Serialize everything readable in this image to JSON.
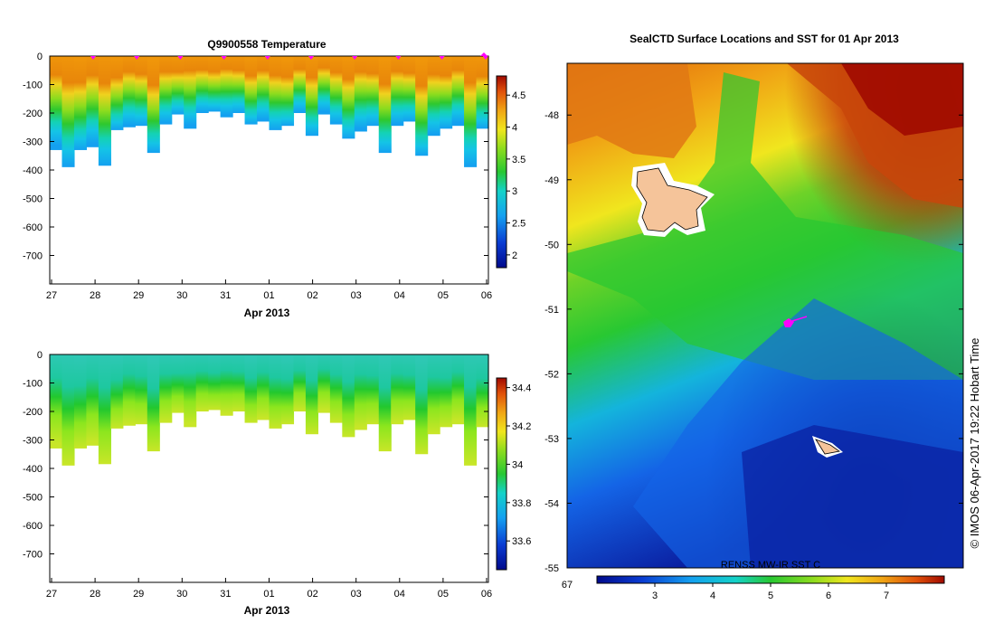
{
  "chart_data": [
    {
      "type": "heatmap",
      "title": "Q9900558  Temperature",
      "xlabel": "Apr 2013",
      "x_ticks": [
        "27",
        "28",
        "29",
        "30",
        "31",
        "01",
        "02",
        "03",
        "04",
        "05",
        "06"
      ],
      "y_ticks": [
        "0",
        "-100",
        "-200",
        "-300",
        "-400",
        "-500",
        "-600",
        "-700"
      ],
      "ylim": [
        -800,
        0
      ],
      "colorbar_ticks": [
        "4.5",
        "4",
        "3.5",
        "3",
        "2.5",
        "2"
      ],
      "colorbar_range": [
        1.8,
        4.8
      ],
      "profile_depths": [
        330,
        390,
        330,
        320,
        385,
        260,
        250,
        245,
        340,
        240,
        205,
        255,
        200,
        195,
        215,
        200,
        240,
        230,
        260,
        245,
        200,
        280,
        205,
        240,
        290,
        265,
        245,
        340,
        245,
        230,
        350,
        280,
        255,
        245,
        390,
        255
      ],
      "colors": {
        "warm": "#e8860a",
        "mid": "#2ec82e",
        "cool": "#14c4e6",
        "marker": "#ff00ff"
      }
    },
    {
      "type": "heatmap",
      "title": "",
      "xlabel": "Apr 2013",
      "x_ticks": [
        "27",
        "28",
        "29",
        "30",
        "31",
        "01",
        "02",
        "03",
        "04",
        "05",
        "06"
      ],
      "y_ticks": [
        "0",
        "-100",
        "-200",
        "-300",
        "-400",
        "-500",
        "-600",
        "-700"
      ],
      "ylim": [
        -800,
        0
      ],
      "colorbar_ticks": [
        "34.4",
        "34.2",
        "34",
        "33.8",
        "33.6"
      ],
      "colorbar_range": [
        33.45,
        34.45
      ],
      "colors": {
        "fresh": "#2ec8b4",
        "mid": "#22c82e",
        "salty": "#c8e628"
      }
    },
    {
      "type": "heatmap",
      "title": "SealCTD Surface Locations and SST for 01 Apr 2013",
      "y_ticks": [
        "-48",
        "-49",
        "-50",
        "-51",
        "-52",
        "-53",
        "-54",
        "-55"
      ],
      "ylim": [
        -55,
        -47.2
      ],
      "x_tick_left": "67",
      "colorbar_label": "RENSS MW-IR SST C",
      "colorbar_ticks": [
        "3",
        "4",
        "5",
        "6",
        "7"
      ],
      "colorbar_range": [
        2,
        8
      ],
      "colors": {
        "land": "#f5c49a",
        "seal_track": "#ff00ff"
      }
    }
  ],
  "credit": "© IMOS 06-Apr-2017 19:22 Hobart Time"
}
